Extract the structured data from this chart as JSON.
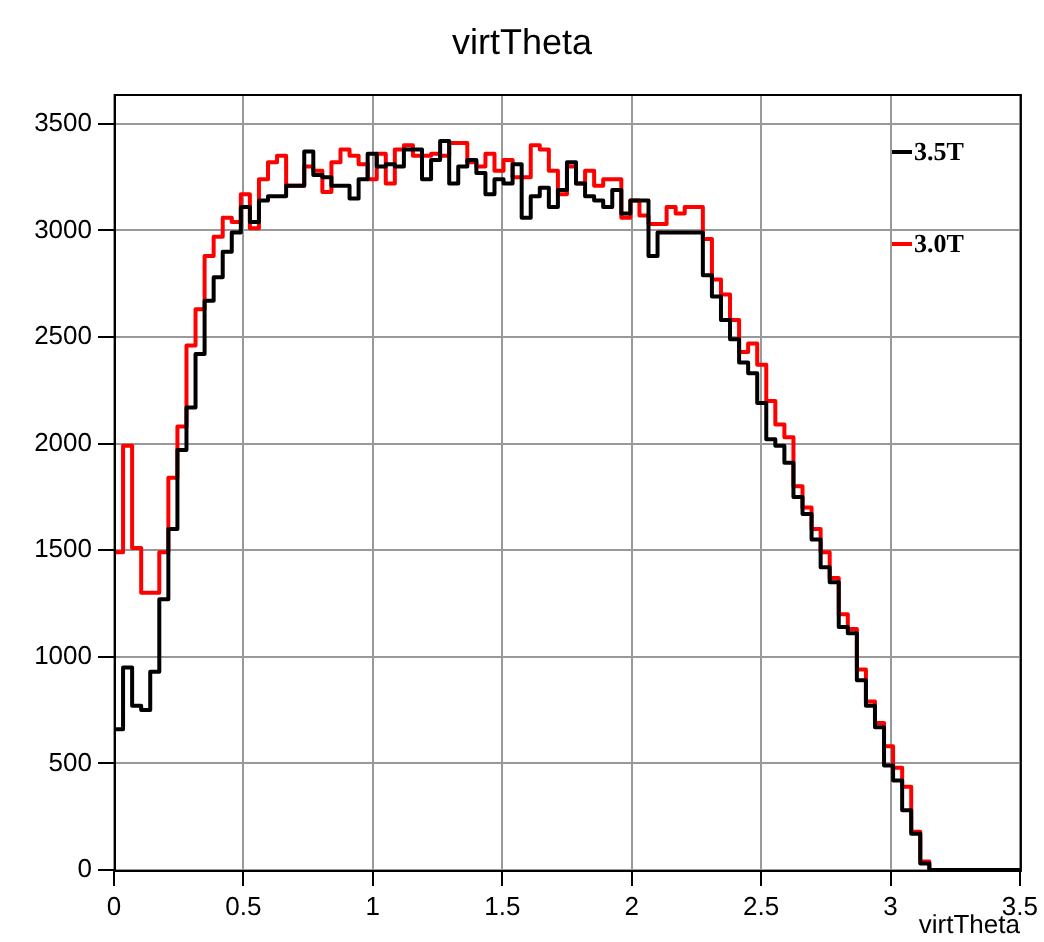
{
  "chart_data": {
    "type": "histogram",
    "title": "virtTheta",
    "xlabel": "virtTheta",
    "bins": [
      0,
      0.035,
      0.07,
      0.105,
      0.14,
      0.175,
      0.21,
      0.245,
      0.28,
      0.315,
      0.35,
      0.385,
      0.42,
      0.455,
      0.49,
      0.525,
      0.56,
      0.595,
      0.63,
      0.665,
      0.7,
      0.735,
      0.77,
      0.805,
      0.84,
      0.875,
      0.91,
      0.945,
      0.98,
      1.015,
      1.05,
      1.085,
      1.12,
      1.155,
      1.19,
      1.225,
      1.26,
      1.295,
      1.33,
      1.365,
      1.4,
      1.435,
      1.47,
      1.505,
      1.54,
      1.575,
      1.61,
      1.645,
      1.68,
      1.715,
      1.75,
      1.785,
      1.82,
      1.855,
      1.89,
      1.925,
      1.96,
      1.995,
      2.03,
      2.065,
      2.1,
      2.135,
      2.17,
      2.205,
      2.24,
      2.275,
      2.31,
      2.345,
      2.38,
      2.415,
      2.45,
      2.485,
      2.52,
      2.555,
      2.59,
      2.625,
      2.66,
      2.695,
      2.73,
      2.765,
      2.8,
      2.835,
      2.87,
      2.905,
      2.94,
      2.975,
      3.01,
      3.045,
      3.08,
      3.115,
      3.15,
      3.185,
      3.22,
      3.255,
      3.29,
      3.325,
      3.36,
      3.395,
      3.43,
      3.465,
      3.5
    ],
    "series": [
      {
        "name": "3.5T",
        "color": "#000000",
        "values": [
          660,
          950,
          770,
          750,
          930,
          1270,
          1600,
          1970,
          2170,
          2420,
          2670,
          2780,
          2900,
          2990,
          3110,
          3040,
          3140,
          3160,
          3160,
          3210,
          3210,
          3370,
          3260,
          3250,
          3210,
          3210,
          3150,
          3240,
          3360,
          3300,
          3310,
          3300,
          3380,
          3380,
          3240,
          3330,
          3420,
          3220,
          3300,
          3330,
          3270,
          3170,
          3240,
          3220,
          3310,
          3060,
          3160,
          3200,
          3110,
          3190,
          3320,
          3220,
          3160,
          3140,
          3110,
          3190,
          3080,
          3140,
          3140,
          2880,
          2990,
          2990,
          2990,
          2990,
          2990,
          2790,
          2690,
          2580,
          2490,
          2380,
          2330,
          2190,
          2020,
          1990,
          1910,
          1750,
          1670,
          1550,
          1420,
          1350,
          1140,
          1110,
          890,
          770,
          670,
          490,
          420,
          280,
          170,
          30,
          0,
          0,
          0,
          0,
          0,
          0,
          0,
          0,
          0,
          0
        ]
      },
      {
        "name": "3.0T",
        "color": "#ff0000",
        "values": [
          1490,
          1990,
          1510,
          1300,
          1300,
          1490,
          1840,
          2080,
          2460,
          2630,
          2880,
          2970,
          3060,
          3040,
          3170,
          3010,
          3240,
          3320,
          3350,
          3210,
          3210,
          3300,
          3280,
          3180,
          3320,
          3380,
          3350,
          3310,
          3240,
          3360,
          3220,
          3380,
          3400,
          3350,
          3350,
          3360,
          3350,
          3410,
          3410,
          3320,
          3300,
          3360,
          3280,
          3330,
          3250,
          3250,
          3400,
          3380,
          3280,
          3170,
          3300,
          3220,
          3280,
          3210,
          3240,
          3240,
          3060,
          3140,
          3070,
          3030,
          3030,
          3110,
          3080,
          3110,
          3110,
          2960,
          2770,
          2700,
          2580,
          2430,
          2470,
          2370,
          2200,
          2090,
          2030,
          1800,
          1700,
          1600,
          1490,
          1370,
          1200,
          1130,
          940,
          790,
          690,
          580,
          480,
          390,
          180,
          40,
          0,
          0,
          0,
          0,
          0,
          0,
          0,
          0,
          0,
          0
        ]
      }
    ],
    "xlim": [
      0,
      3.5
    ],
    "xticks": [
      0,
      0.5,
      1,
      1.5,
      2,
      2.5,
      3,
      3.5
    ],
    "ylim": [
      0,
      3640
    ],
    "yticks": [
      0,
      500,
      1000,
      1500,
      2000,
      2500,
      3000,
      3500
    ],
    "grid": true,
    "legend": "top right",
    "line_style": "solid",
    "marker": "none"
  }
}
